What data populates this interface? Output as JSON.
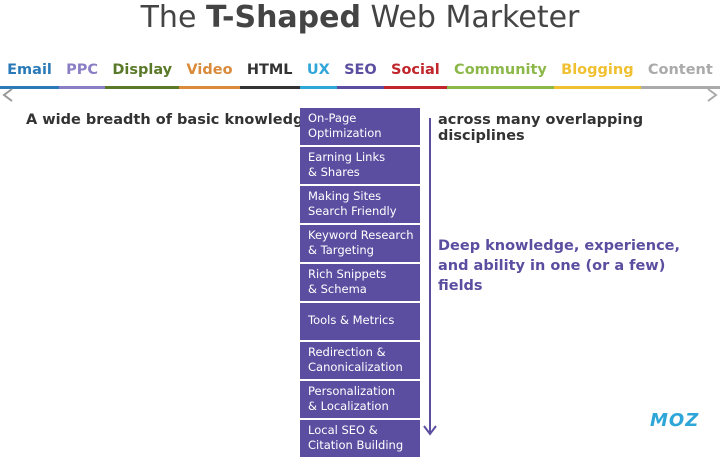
{
  "title": {
    "prefix": "The",
    "emphasis": "T-Shaped",
    "suffix": "Web Marketer"
  },
  "disciplines": [
    {
      "label": "Email",
      "color": "#2a7ab8"
    },
    {
      "label": "PPC",
      "color": "#8a7fc4"
    },
    {
      "label": "Display",
      "color": "#5a7a2a"
    },
    {
      "label": "Video",
      "color": "#d98a3a"
    },
    {
      "label": "HTML",
      "color": "#333333"
    },
    {
      "label": "UX",
      "color": "#2fa6d8"
    },
    {
      "label": "SEO",
      "color": "#5b4ea0"
    },
    {
      "label": "Social",
      "color": "#c0262c"
    },
    {
      "label": "Community",
      "color": "#8cb84a"
    },
    {
      "label": "Blogging",
      "color": "#f0c030"
    },
    {
      "label": "Content",
      "color": "#aaaaaa"
    }
  ],
  "breadth": {
    "left": "A wide breadth of basic knowledge",
    "right": "across many overlapping disciplines"
  },
  "depth_items": [
    [
      "On-Page",
      "Optimization"
    ],
    [
      "Earning Links",
      "& Shares"
    ],
    [
      "Making Sites",
      "Search Friendly"
    ],
    [
      "Keyword Research",
      "& Targeting"
    ],
    [
      "Rich Snippets",
      "& Schema"
    ],
    [
      "Tools & Metrics"
    ],
    [
      "Redirection &",
      "Canonicalization"
    ],
    [
      "Personalization",
      "& Localization"
    ],
    [
      "Local SEO &",
      "Citation Building"
    ]
  ],
  "depth_caption": [
    "Deep knowledge, experience,",
    "and ability in one (or a few)",
    "fields"
  ],
  "logo": "MOZ"
}
